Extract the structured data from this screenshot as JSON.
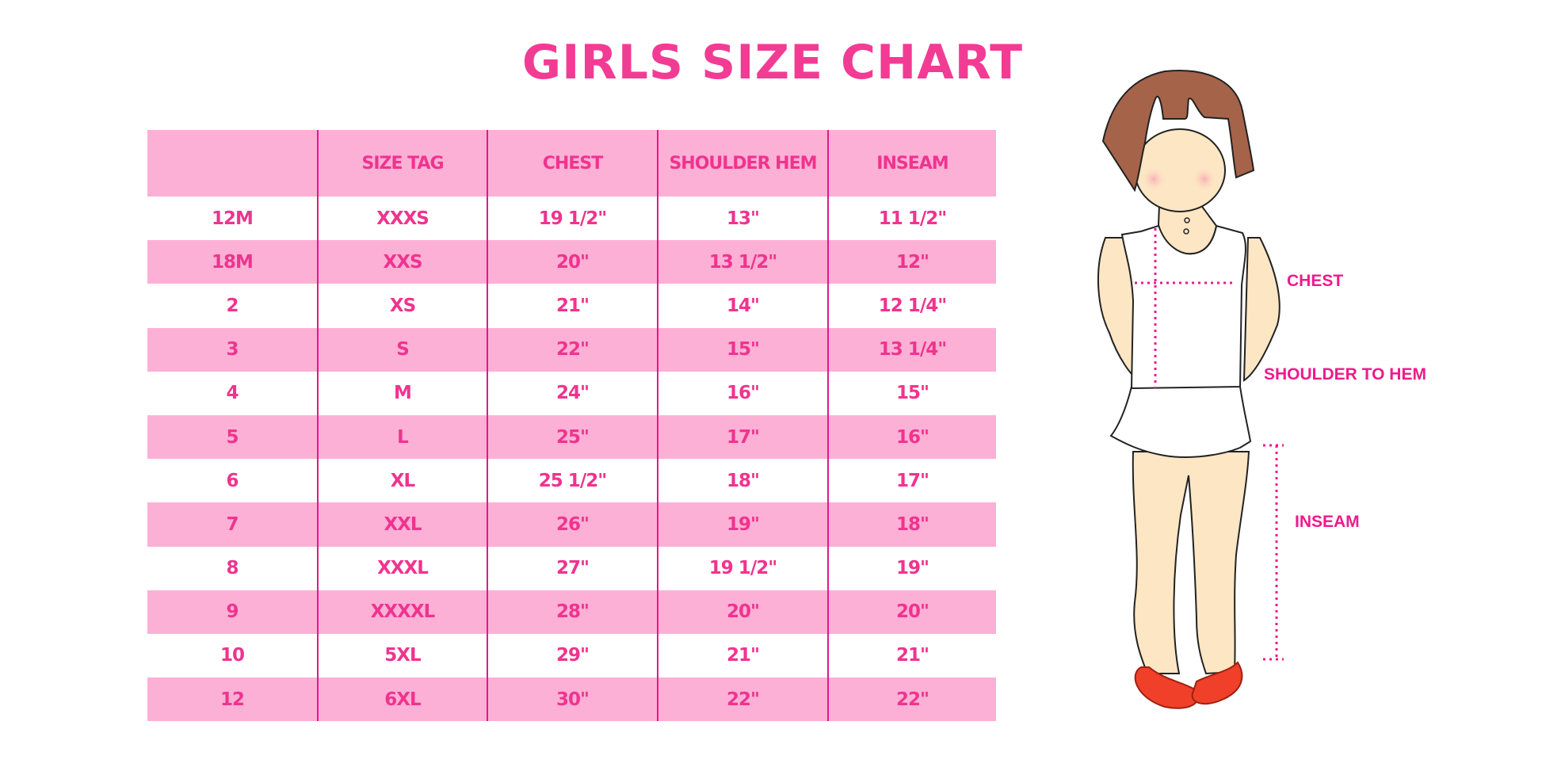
{
  "title": "GIRLS SIZE CHART",
  "table": {
    "headers": [
      "",
      "SIZE TAG",
      "CHEST",
      "SHOULDER HEM",
      "INSEAM"
    ],
    "rows": [
      [
        "12M",
        "XXXS",
        "19 1/2\"",
        "13\"",
        "11 1/2\""
      ],
      [
        "18M",
        "XXS",
        "20\"",
        "13 1/2\"",
        "12\""
      ],
      [
        "2",
        "XS",
        "21\"",
        "14\"",
        "12 1/4\""
      ],
      [
        "3",
        "S",
        "22\"",
        "15\"",
        "13 1/4\""
      ],
      [
        "4",
        "M",
        "24\"",
        "16\"",
        "15\""
      ],
      [
        "5",
        "L",
        "25\"",
        "17\"",
        "16\""
      ],
      [
        "6",
        "XL",
        "25 1/2\"",
        "18\"",
        "17\""
      ],
      [
        "7",
        "XXL",
        "26\"",
        "19\"",
        "18\""
      ],
      [
        "8",
        "XXXL",
        "27\"",
        "19 1/2\"",
        "19\""
      ],
      [
        "9",
        "XXXXL",
        "28\"",
        "20\"",
        "20\""
      ],
      [
        "10",
        "5XL",
        "29\"",
        "21\"",
        "21\""
      ],
      [
        "12",
        "6XL",
        "30\"",
        "22\"",
        "22\""
      ]
    ]
  },
  "figure": {
    "chest_label": "CHEST",
    "shoulder_label": "SHOULDER TO HEM",
    "inseam_label": "INSEAM"
  },
  "colors": {
    "accent": "#f23c94",
    "row_pink": "#fdb0d5",
    "divider": "#e5168d",
    "hair": "#a5634a",
    "skin": "#fde6c4",
    "shoe": "#f0402a"
  }
}
